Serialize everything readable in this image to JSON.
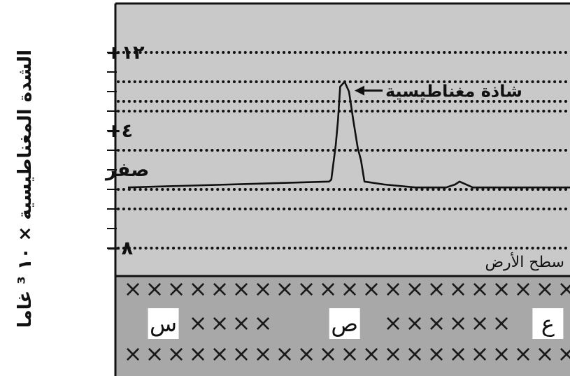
{
  "chart_data": {
    "type": "line",
    "ylabel": "الشدة المغناطيسية × ١٠ ³ غاما",
    "ylim": [
      -10,
      15.5
    ],
    "y_ticks": [
      {
        "value": 12,
        "label": "١٢+"
      },
      {
        "value": 4,
        "label": "٤+"
      },
      {
        "value": 0,
        "label": "صفر"
      },
      {
        "value": -8,
        "label": "٨−"
      }
    ],
    "minor_ticks": [
      12,
      10,
      8,
      6,
      4,
      2,
      0,
      -2,
      -4,
      -6,
      -8
    ],
    "gridlines": [
      12,
      9,
      7,
      6,
      2,
      -2,
      -4,
      -8
    ],
    "grid_style": "dotted",
    "x_range": [
      0,
      100
    ],
    "series": [
      {
        "x": [
          0,
          45.5,
          46,
          47,
          47.5,
          48,
          49,
          50,
          51,
          52,
          52.7,
          53.5,
          55,
          58,
          65,
          72,
          74,
          75,
          76,
          78,
          80,
          90,
          100
        ],
        "y": [
          -1.8,
          -1.2,
          -1.0,
          2.5,
          5.0,
          8.5,
          9.0,
          8.0,
          5.0,
          2.2,
          1.0,
          -1.2,
          -1.3,
          -1.5,
          -1.8,
          -1.8,
          -1.5,
          -1.2,
          -1.4,
          -1.8,
          -1.8,
          -1.8,
          -1.8
        ]
      }
    ],
    "annotations": [
      {
        "text": "شاذة مغناطيسية",
        "x": 50,
        "y": 8.1,
        "arrow": true
      },
      {
        "text": "سطح الأرض",
        "x": 100,
        "y": -9.2
      }
    ],
    "ground_labels": [
      {
        "text": "س",
        "x": 8
      },
      {
        "text": "ص",
        "x": 49
      },
      {
        "text": "ع",
        "x": 95
      }
    ],
    "ground_marker": "×"
  }
}
